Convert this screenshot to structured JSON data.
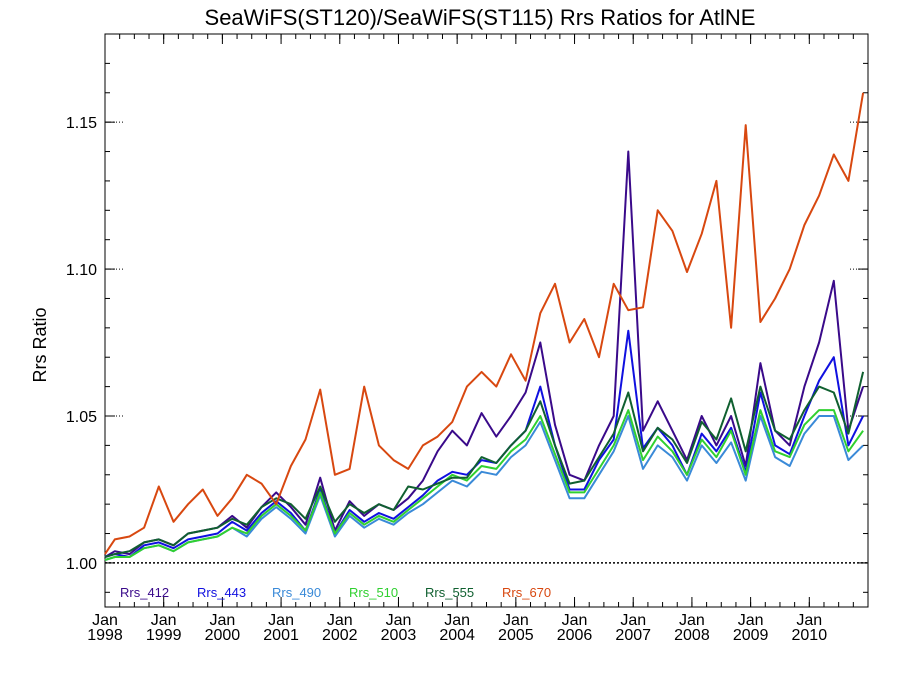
{
  "chart_data": {
    "type": "line",
    "title": "SeaWiFS(ST120)/SeaWiFS(ST115)  Rrs Ratios for AtlNE",
    "xlabel": "",
    "ylabel": "Rrs Ratio",
    "xlim": [
      "1998-01",
      "2010-12"
    ],
    "ylim": [
      0.985,
      1.18
    ],
    "reference_line": 1.0,
    "y_dotted_gridlines": [
      1.05,
      1.1,
      1.15
    ],
    "y_ticks": [
      {
        "value": 1.0,
        "label": "1.00"
      },
      {
        "value": 1.05,
        "label": "1.05"
      },
      {
        "value": 1.1,
        "label": "1.10"
      },
      {
        "value": 1.15,
        "label": "1.15"
      }
    ],
    "x_ticks": [
      {
        "month": "Jan",
        "year": "1998"
      },
      {
        "month": "Jan",
        "year": "1999"
      },
      {
        "month": "Jan",
        "year": "2000"
      },
      {
        "month": "Jan",
        "year": "2001"
      },
      {
        "month": "Jan",
        "year": "2002"
      },
      {
        "month": "Jan",
        "year": "2003"
      },
      {
        "month": "Jan",
        "year": "2004"
      },
      {
        "month": "Jan",
        "year": "2005"
      },
      {
        "month": "Jan",
        "year": "2006"
      },
      {
        "month": "Jan",
        "year": "2007"
      },
      {
        "month": "Jan",
        "year": "2008"
      },
      {
        "month": "Jan",
        "year": "2009"
      },
      {
        "month": "Jan",
        "year": "2010"
      }
    ],
    "legend_position": "bottom-left, inside plot",
    "x": [
      "1998-01",
      "1998-03",
      "1998-06",
      "1998-09",
      "1998-12",
      "1999-03",
      "1999-06",
      "1999-09",
      "1999-12",
      "2000-03",
      "2000-06",
      "2000-09",
      "2000-12",
      "2001-03",
      "2001-06",
      "2001-09",
      "2001-12",
      "2002-03",
      "2002-06",
      "2002-09",
      "2002-12",
      "2003-03",
      "2003-06",
      "2003-09",
      "2003-12",
      "2004-03",
      "2004-06",
      "2004-09",
      "2004-12",
      "2005-03",
      "2005-06",
      "2005-09",
      "2005-12",
      "2006-03",
      "2006-06",
      "2006-09",
      "2006-12",
      "2007-03",
      "2007-06",
      "2007-09",
      "2007-12",
      "2008-03",
      "2008-06",
      "2008-09",
      "2008-12",
      "2009-03",
      "2009-06",
      "2009-09",
      "2009-12",
      "2010-03",
      "2010-06",
      "2010-09",
      "2010-12"
    ],
    "series": [
      {
        "name": "Rrs_412",
        "color": "#3a0a8a",
        "values": [
          1.002,
          1.004,
          1.003,
          1.007,
          1.008,
          1.006,
          1.01,
          1.011,
          1.012,
          1.016,
          1.012,
          1.019,
          1.024,
          1.019,
          1.013,
          1.029,
          1.011,
          1.021,
          1.016,
          1.02,
          1.018,
          1.022,
          1.028,
          1.038,
          1.045,
          1.04,
          1.051,
          1.043,
          1.05,
          1.058,
          1.075,
          1.047,
          1.03,
          1.028,
          1.04,
          1.05,
          1.14,
          1.045,
          1.055,
          1.045,
          1.035,
          1.05,
          1.04,
          1.05,
          1.033,
          1.068,
          1.045,
          1.04,
          1.06,
          1.075,
          1.096,
          1.045,
          1.06
        ]
      },
      {
        "name": "Rrs_443",
        "color": "#1010e0",
        "values": [
          1.002,
          1.003,
          1.002,
          1.006,
          1.007,
          1.005,
          1.008,
          1.009,
          1.01,
          1.014,
          1.011,
          1.017,
          1.021,
          1.017,
          1.011,
          1.025,
          1.01,
          1.018,
          1.014,
          1.017,
          1.015,
          1.019,
          1.023,
          1.028,
          1.031,
          1.03,
          1.035,
          1.034,
          1.04,
          1.045,
          1.06,
          1.04,
          1.025,
          1.025,
          1.035,
          1.042,
          1.079,
          1.039,
          1.046,
          1.04,
          1.03,
          1.044,
          1.038,
          1.046,
          1.031,
          1.058,
          1.04,
          1.037,
          1.05,
          1.062,
          1.07,
          1.04,
          1.05
        ]
      },
      {
        "name": "Rrs_490",
        "color": "#3a8ad8",
        "values": [
          1.001,
          1.002,
          1.002,
          1.005,
          1.006,
          1.004,
          1.007,
          1.008,
          1.009,
          1.012,
          1.009,
          1.015,
          1.019,
          1.015,
          1.01,
          1.023,
          1.009,
          1.016,
          1.012,
          1.015,
          1.013,
          1.017,
          1.02,
          1.024,
          1.028,
          1.026,
          1.031,
          1.03,
          1.036,
          1.04,
          1.048,
          1.035,
          1.022,
          1.022,
          1.03,
          1.038,
          1.05,
          1.032,
          1.04,
          1.036,
          1.028,
          1.04,
          1.034,
          1.041,
          1.028,
          1.05,
          1.036,
          1.033,
          1.044,
          1.05,
          1.05,
          1.035,
          1.04
        ]
      },
      {
        "name": "Rrs_510",
        "color": "#30d030",
        "values": [
          1.001,
          1.002,
          1.002,
          1.005,
          1.006,
          1.004,
          1.007,
          1.008,
          1.009,
          1.012,
          1.01,
          1.016,
          1.02,
          1.016,
          1.011,
          1.024,
          1.01,
          1.017,
          1.013,
          1.016,
          1.014,
          1.018,
          1.022,
          1.026,
          1.03,
          1.028,
          1.033,
          1.032,
          1.038,
          1.042,
          1.05,
          1.037,
          1.024,
          1.024,
          1.032,
          1.04,
          1.052,
          1.035,
          1.043,
          1.038,
          1.03,
          1.042,
          1.036,
          1.045,
          1.03,
          1.052,
          1.038,
          1.036,
          1.047,
          1.052,
          1.052,
          1.038,
          1.045
        ]
      },
      {
        "name": "Rrs_555",
        "color": "#106030",
        "values": [
          1.002,
          1.003,
          1.004,
          1.007,
          1.008,
          1.006,
          1.01,
          1.011,
          1.012,
          1.015,
          1.013,
          1.019,
          1.022,
          1.02,
          1.015,
          1.026,
          1.014,
          1.02,
          1.017,
          1.02,
          1.018,
          1.026,
          1.025,
          1.027,
          1.029,
          1.029,
          1.036,
          1.034,
          1.04,
          1.045,
          1.055,
          1.04,
          1.027,
          1.028,
          1.036,
          1.044,
          1.058,
          1.038,
          1.046,
          1.042,
          1.034,
          1.048,
          1.042,
          1.056,
          1.038,
          1.06,
          1.045,
          1.042,
          1.052,
          1.06,
          1.058,
          1.044,
          1.065
        ]
      },
      {
        "name": "Rrs_670",
        "color": "#d84810",
        "values": [
          1.003,
          1.008,
          1.009,
          1.012,
          1.026,
          1.014,
          1.02,
          1.025,
          1.016,
          1.022,
          1.03,
          1.027,
          1.02,
          1.033,
          1.042,
          1.059,
          1.03,
          1.032,
          1.06,
          1.04,
          1.035,
          1.032,
          1.04,
          1.043,
          1.048,
          1.06,
          1.065,
          1.06,
          1.071,
          1.062,
          1.085,
          1.095,
          1.075,
          1.083,
          1.07,
          1.095,
          1.086,
          1.087,
          1.12,
          1.113,
          1.099,
          1.112,
          1.13,
          1.08,
          1.149,
          1.082,
          1.09,
          1.1,
          1.115,
          1.125,
          1.139,
          1.13,
          1.16
        ]
      }
    ]
  }
}
